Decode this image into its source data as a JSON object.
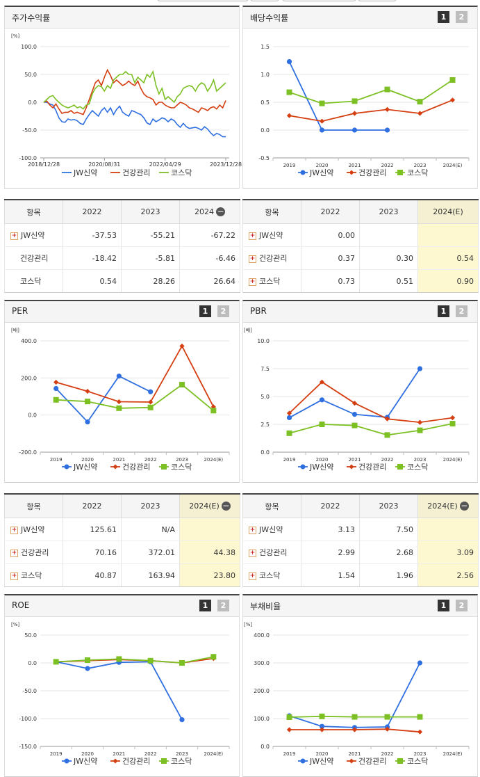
{
  "panels": [
    {
      "id": "stock_return",
      "title": "주가수익률",
      "pages": null,
      "chart": {
        "type": "line",
        "unit": "[%]",
        "yticks": [
          "100.0",
          "50.0",
          "0.0",
          "-50.0",
          "-100.0"
        ],
        "ymin": -100,
        "ymax": 100,
        "xlabels": [
          "2018/12/28",
          "2020/08/31",
          "2022/04/29",
          "2023/12/28"
        ],
        "xnum": [
          0,
          20,
          40,
          60
        ],
        "xmax": 60
      },
      "table": {
        "headers": [
          "항목",
          "2022",
          "2023",
          "2024"
        ],
        "header_minus": true,
        "highlight_last": false,
        "rows": [
          {
            "name": "JW신약",
            "plus": true,
            "values": [
              "-37.53",
              "-55.21",
              "-67.22"
            ]
          },
          {
            "name": "건강관리",
            "plus": false,
            "values": [
              "-18.42",
              "-5.81",
              "-6.46"
            ]
          },
          {
            "name": "코스닥",
            "plus": false,
            "values": [
              "0.54",
              "28.26",
              "26.64"
            ]
          }
        ]
      }
    },
    {
      "id": "dividend",
      "title": "배당수익률",
      "pages": [
        "1",
        "2"
      ],
      "chart": {
        "type": "line",
        "unit": "",
        "yticks": [
          "1.5",
          "1.0",
          "0.5",
          "0.0",
          "-0.5"
        ],
        "ymin": -0.5,
        "ymax": 1.5,
        "xlabels": [
          "2019",
          "2020",
          "2021",
          "2022",
          "2023",
          "2024(E)"
        ]
      },
      "table": {
        "headers": [
          "항목",
          "2022",
          "2023",
          "2024(E)"
        ],
        "header_minus": false,
        "highlight_last": true,
        "rows": [
          {
            "name": "JW신약",
            "plus": true,
            "values": [
              "0.00",
              "",
              ""
            ]
          },
          {
            "name": "건강관리",
            "plus": true,
            "values": [
              "0.37",
              "0.30",
              "0.54"
            ]
          },
          {
            "name": "코스닥",
            "plus": true,
            "values": [
              "0.73",
              "0.51",
              "0.90"
            ]
          }
        ]
      }
    },
    {
      "id": "per",
      "title": "PER",
      "pages": [
        "1",
        "2"
      ],
      "chart": {
        "type": "line",
        "unit": "[배]",
        "yticks": [
          "400.0",
          "200.0",
          "0.0",
          "-200.0"
        ],
        "ymin": -200,
        "ymax": 400,
        "xlabels": [
          "2019",
          "2020",
          "2021",
          "2022",
          "2023",
          "2024(E)"
        ]
      },
      "table": {
        "headers": [
          "항목",
          "2022",
          "2023",
          "2024(E)"
        ],
        "header_minus": true,
        "highlight_last": true,
        "rows": [
          {
            "name": "JW신약",
            "plus": true,
            "values": [
              "125.61",
              "N/A",
              ""
            ]
          },
          {
            "name": "건강관리",
            "plus": true,
            "values": [
              "70.16",
              "372.01",
              "44.38"
            ]
          },
          {
            "name": "코스닥",
            "plus": true,
            "values": [
              "40.87",
              "163.94",
              "23.80"
            ]
          }
        ]
      }
    },
    {
      "id": "pbr",
      "title": "PBR",
      "pages": [
        "1",
        "2"
      ],
      "chart": {
        "type": "line",
        "unit": "[배]",
        "yticks": [
          "10.0",
          "7.5",
          "5.0",
          "2.5",
          "0.0"
        ],
        "ymin": 0,
        "ymax": 10,
        "xlabels": [
          "2019",
          "2020",
          "2021",
          "2022",
          "2023",
          "2024(E)"
        ]
      },
      "table": {
        "headers": [
          "항목",
          "2022",
          "2023",
          "2024(E)"
        ],
        "header_minus": true,
        "highlight_last": true,
        "rows": [
          {
            "name": "JW신약",
            "plus": true,
            "values": [
              "3.13",
              "7.50",
              ""
            ]
          },
          {
            "name": "건강관리",
            "plus": true,
            "values": [
              "2.99",
              "2.68",
              "3.09"
            ]
          },
          {
            "name": "코스닥",
            "plus": true,
            "values": [
              "1.54",
              "1.96",
              "2.56"
            ]
          }
        ]
      }
    },
    {
      "id": "roe",
      "title": "ROE",
      "pages": [
        "1",
        "2"
      ],
      "chart": {
        "type": "line",
        "unit": "[%]",
        "yticks": [
          "50.0",
          "0.0",
          "-50.0",
          "-100.0",
          "-150.0"
        ],
        "ymin": -150,
        "ymax": 50,
        "xlabels": [
          "2019",
          "2020",
          "2021",
          "2022",
          "2023",
          "2024(E)"
        ]
      },
      "table": null
    },
    {
      "id": "debt",
      "title": "부채비율",
      "pages": [
        "1",
        "2"
      ],
      "chart": {
        "type": "line",
        "unit": "[%]",
        "yticks": [
          "400.0",
          "300.0",
          "200.0",
          "100.0",
          "0.0"
        ],
        "ymin": 0,
        "ymax": 400,
        "xlabels": [
          "2019",
          "2020",
          "2021",
          "2022",
          "2023",
          "2024(E)"
        ]
      },
      "table": null
    }
  ],
  "legend": [
    "JW신약",
    "건강관리",
    "코스닥"
  ],
  "colors": {
    "JW신약": "#2f6fe0",
    "건강관리": "#d43e10",
    "코스닥": "#7cc024"
  },
  "chart_data": [
    {
      "type": "line",
      "title": "주가수익률",
      "ylabel": "[%]",
      "ylim": [
        -100,
        100
      ],
      "x": [
        0,
        1,
        2,
        3,
        4,
        5,
        6,
        7,
        8,
        9,
        10,
        11,
        12,
        13,
        14,
        15,
        16,
        17,
        18,
        19,
        20,
        21,
        22,
        23,
        24,
        25,
        26,
        27,
        28,
        29,
        30,
        31,
        32,
        33,
        34,
        35,
        36,
        37,
        38,
        39,
        40,
        41,
        42,
        43,
        44,
        45,
        46,
        47,
        48,
        49,
        50,
        51,
        52,
        53,
        54,
        55,
        56,
        57,
        58,
        59,
        60
      ],
      "xtick_labels": [
        "2018/12/28",
        "2020/08/31",
        "2022/04/29",
        "2023/12/28"
      ],
      "series": [
        {
          "name": "JW신약",
          "values": [
            0,
            0,
            -3,
            -5,
            -15,
            -28,
            -35,
            -36,
            -30,
            -32,
            -31,
            -33,
            -38,
            -40,
            -30,
            -22,
            -15,
            -20,
            -25,
            -15,
            -10,
            -18,
            -10,
            -22,
            -13,
            -7,
            -18,
            -22,
            -25,
            -15,
            -17,
            -20,
            -22,
            -28,
            -37,
            -40,
            -30,
            -35,
            -32,
            -28,
            -30,
            -35,
            -30,
            -33,
            -40,
            -45,
            -38,
            -44,
            -47,
            -46,
            -45,
            -47,
            -50,
            -44,
            -48,
            -55,
            -60,
            -56,
            -58,
            -62,
            -62
          ]
        },
        {
          "name": "건강관리",
          "values": [
            0,
            2,
            -5,
            -10,
            -3,
            -12,
            -20,
            -18,
            -18,
            -15,
            -20,
            -18,
            -20,
            -22,
            -10,
            5,
            20,
            35,
            40,
            30,
            45,
            58,
            48,
            35,
            40,
            35,
            30,
            33,
            38,
            33,
            30,
            38,
            25,
            15,
            10,
            8,
            5,
            -5,
            0,
            0,
            -5,
            -8,
            -10,
            -10,
            -5,
            0,
            -2,
            -5,
            -10,
            -12,
            -15,
            -18,
            -10,
            -12,
            -15,
            -10,
            -8,
            -12,
            -5,
            -10,
            3
          ]
        },
        {
          "name": "코스닥",
          "values": [
            0,
            5,
            10,
            12,
            5,
            0,
            -5,
            -8,
            -10,
            -8,
            -5,
            -10,
            -8,
            -12,
            -5,
            -3,
            15,
            25,
            30,
            28,
            20,
            30,
            25,
            40,
            45,
            50,
            50,
            55,
            50,
            50,
            35,
            45,
            40,
            35,
            50,
            45,
            55,
            30,
            15,
            25,
            5,
            10,
            5,
            0,
            10,
            15,
            25,
            28,
            30,
            28,
            20,
            30,
            35,
            32,
            20,
            28,
            40,
            20,
            25,
            30,
            35
          ]
        }
      ]
    },
    {
      "type": "line",
      "title": "배당수익률",
      "ylim": [
        -0.5,
        1.5
      ],
      "categories": [
        "2019",
        "2020",
        "2021",
        "2022",
        "2023",
        "2024(E)"
      ],
      "series": [
        {
          "name": "JW신약",
          "values": [
            1.23,
            0.0,
            0.0,
            0.0,
            null,
            null
          ]
        },
        {
          "name": "건강관리",
          "values": [
            0.26,
            0.16,
            0.3,
            0.37,
            0.3,
            0.54
          ]
        },
        {
          "name": "코스닥",
          "values": [
            0.68,
            0.48,
            0.52,
            0.73,
            0.51,
            0.9
          ]
        }
      ]
    },
    {
      "type": "line",
      "title": "PER",
      "ylabel": "[배]",
      "ylim": [
        -200,
        400
      ],
      "categories": [
        "2019",
        "2020",
        "2021",
        "2022",
        "2023",
        "2024(E)"
      ],
      "series": [
        {
          "name": "JW신약",
          "values": [
            143,
            -37,
            210,
            125.61,
            null,
            null
          ]
        },
        {
          "name": "건강관리",
          "values": [
            177,
            128,
            72,
            70.16,
            372.01,
            44.38
          ]
        },
        {
          "name": "코스닥",
          "values": [
            82,
            73,
            37,
            40.87,
            163.94,
            23.8
          ]
        }
      ]
    },
    {
      "type": "line",
      "title": "PBR",
      "ylabel": "[배]",
      "ylim": [
        0,
        10
      ],
      "categories": [
        "2019",
        "2020",
        "2021",
        "2022",
        "2023",
        "2024(E)"
      ],
      "series": [
        {
          "name": "JW신약",
          "values": [
            3.1,
            4.7,
            3.4,
            3.13,
            7.5,
            null
          ]
        },
        {
          "name": "건강관리",
          "values": [
            3.5,
            6.3,
            4.4,
            2.99,
            2.68,
            3.09
          ]
        },
        {
          "name": "코스닥",
          "values": [
            1.7,
            2.5,
            2.4,
            1.54,
            1.96,
            2.56
          ]
        }
      ]
    },
    {
      "type": "line",
      "title": "ROE",
      "ylabel": "[%]",
      "ylim": [
        -150,
        50
      ],
      "categories": [
        "2019",
        "2020",
        "2021",
        "2022",
        "2023",
        "2024(E)"
      ],
      "series": [
        {
          "name": "JW신약",
          "values": [
            2,
            -10,
            1,
            2,
            -102,
            null
          ]
        },
        {
          "name": "건강관리",
          "values": [
            2,
            4,
            6,
            4,
            0,
            8
          ]
        },
        {
          "name": "코스닥",
          "values": [
            2,
            5,
            7,
            4,
            0,
            11
          ]
        }
      ]
    },
    {
      "type": "line",
      "title": "부채비율",
      "ylabel": "[%]",
      "ylim": [
        0,
        400
      ],
      "categories": [
        "2019",
        "2020",
        "2021",
        "2022",
        "2023",
        "2024(E)"
      ],
      "series": [
        {
          "name": "JW신약",
          "values": [
            110,
            72,
            68,
            70,
            300,
            null
          ]
        },
        {
          "name": "건강관리",
          "values": [
            60,
            60,
            60,
            62,
            52,
            null
          ]
        },
        {
          "name": "코스닥",
          "values": [
            105,
            108,
            106,
            106,
            106,
            null
          ]
        }
      ]
    }
  ]
}
